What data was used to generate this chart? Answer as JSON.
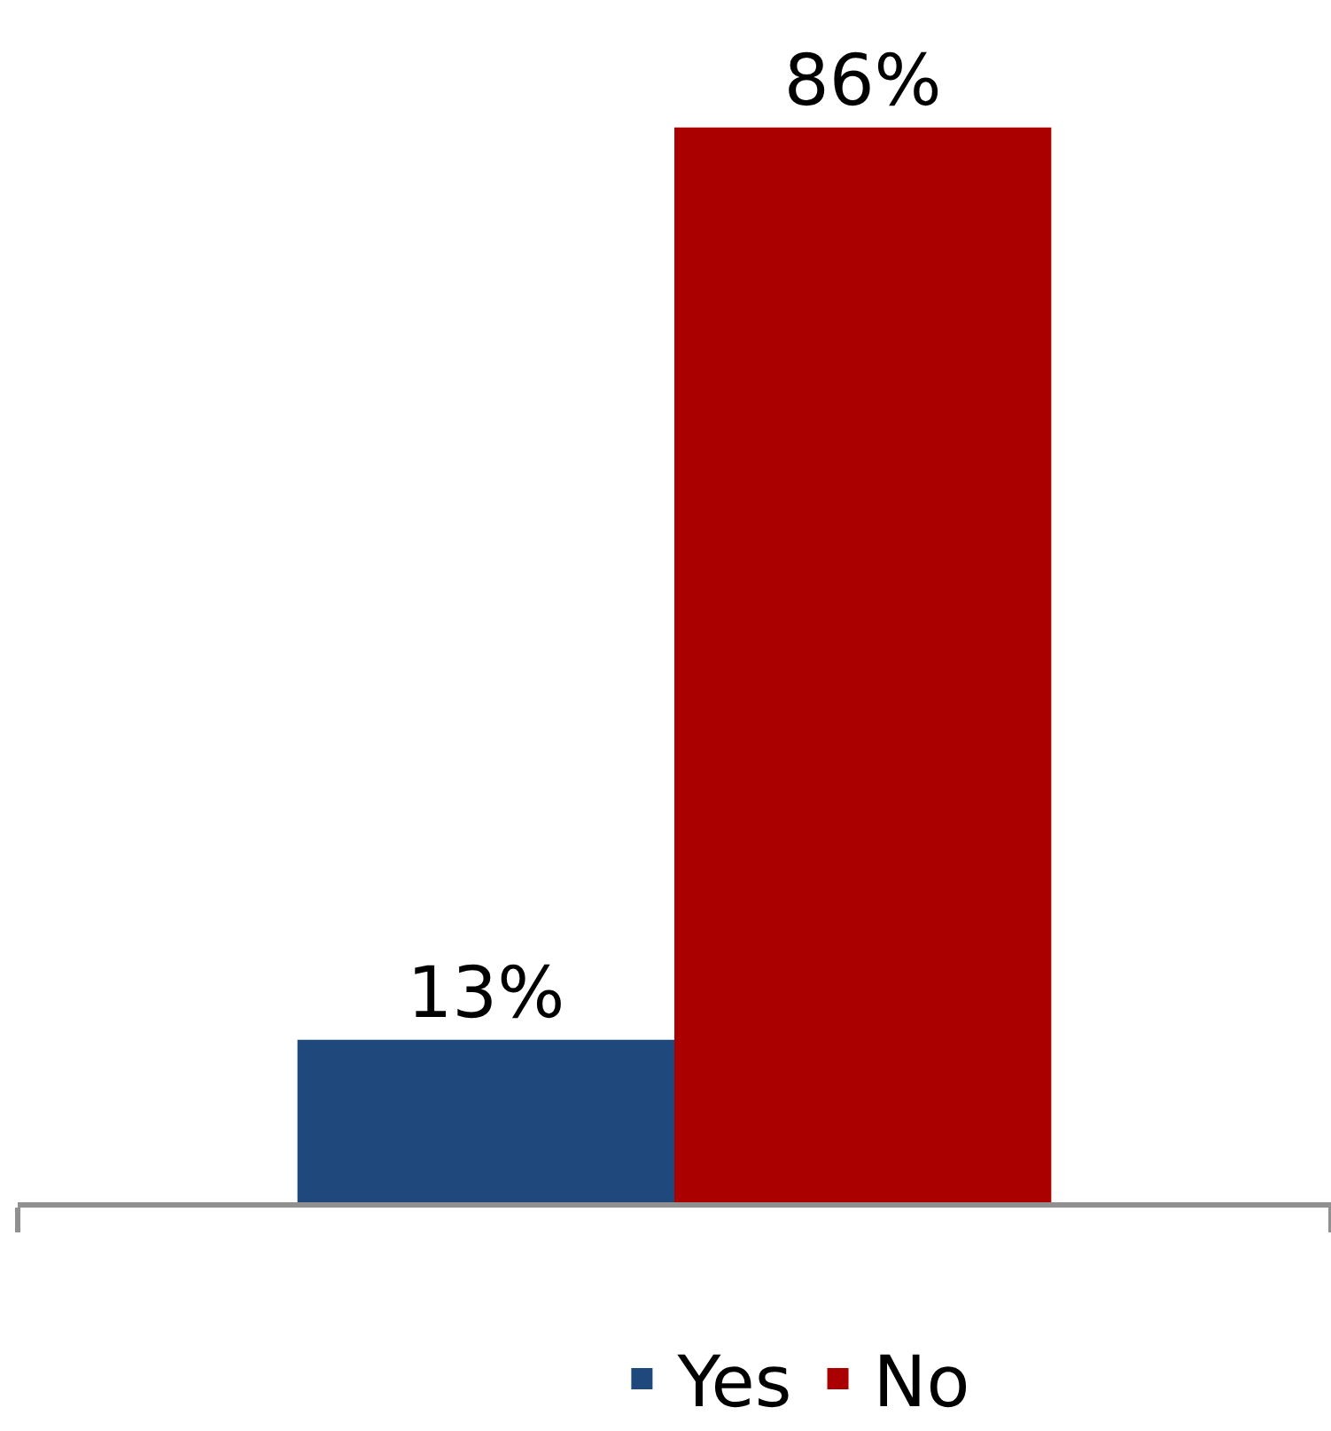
{
  "chart_data": {
    "type": "bar",
    "categories": [
      null
    ],
    "series": [
      {
        "name": "Yes",
        "color": "#1f497d",
        "values": [
          13
        ],
        "value_labels": [
          "13%"
        ]
      },
      {
        "name": "No",
        "color": "#aa0000",
        "values": [
          86
        ],
        "value_labels": [
          "86%"
        ]
      }
    ],
    "legend": "bottom",
    "tick_labels": false
  }
}
